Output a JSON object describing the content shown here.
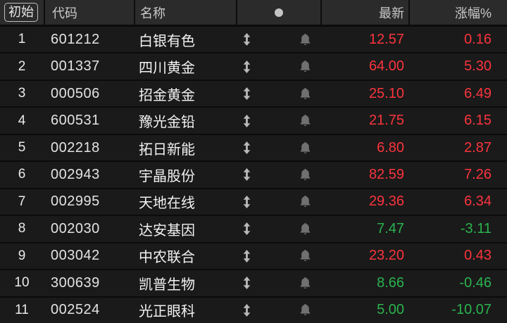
{
  "header": {
    "initial_button": "初始",
    "col_code": "代码",
    "col_name": "名称",
    "col_latest": "最新",
    "col_change": "涨幅%"
  },
  "icons": {
    "header_dot": "circle-dot",
    "row_reorder": "updown-arrows",
    "row_alert": "bell"
  },
  "colors": {
    "up_red": "#fa343e",
    "down_green": "#2ab34f",
    "header_bg": "#2b2b2b",
    "row_bg": "#1a1a1a"
  },
  "rows": [
    {
      "index": "1",
      "code": "601212",
      "name": "白银有色",
      "latest": "12.57",
      "change": "0.16",
      "trend": "up"
    },
    {
      "index": "2",
      "code": "001337",
      "name": "四川黄金",
      "latest": "64.00",
      "change": "5.30",
      "trend": "up"
    },
    {
      "index": "3",
      "code": "000506",
      "name": "招金黄金",
      "latest": "25.10",
      "change": "6.49",
      "trend": "up"
    },
    {
      "index": "4",
      "code": "600531",
      "name": "豫光金铅",
      "latest": "21.75",
      "change": "6.15",
      "trend": "up"
    },
    {
      "index": "5",
      "code": "002218",
      "name": "拓日新能",
      "latest": "6.80",
      "change": "2.87",
      "trend": "up"
    },
    {
      "index": "6",
      "code": "002943",
      "name": "宇晶股份",
      "latest": "82.59",
      "change": "7.26",
      "trend": "up"
    },
    {
      "index": "7",
      "code": "002995",
      "name": "天地在线",
      "latest": "29.36",
      "change": "6.34",
      "trend": "up"
    },
    {
      "index": "8",
      "code": "002030",
      "name": "达安基因",
      "latest": "7.47",
      "change": "-3.11",
      "trend": "down"
    },
    {
      "index": "9",
      "code": "003042",
      "name": "中农联合",
      "latest": "23.20",
      "change": "0.43",
      "trend": "up"
    },
    {
      "index": "10",
      "code": "300639",
      "name": "凯普生物",
      "latest": "8.66",
      "change": "-0.46",
      "trend": "down"
    },
    {
      "index": "11",
      "code": "002524",
      "name": "光正眼科",
      "latest": "5.00",
      "change": "-10.07",
      "trend": "down"
    }
  ]
}
